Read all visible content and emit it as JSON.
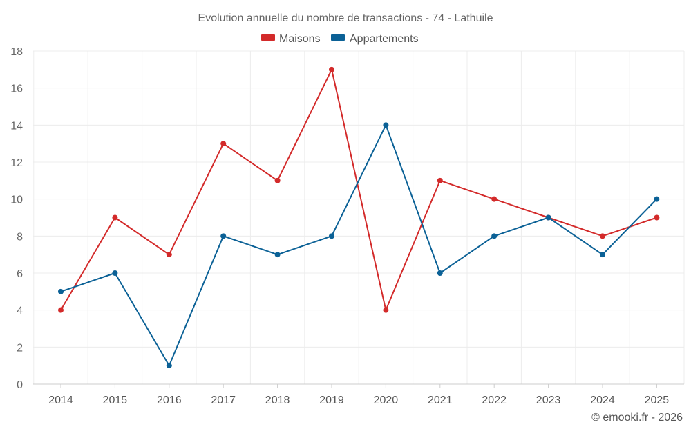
{
  "chart_data": {
    "type": "line",
    "title": "Evolution annuelle du nombre de transactions - 74 - Lathuile",
    "categories": [
      "2014",
      "2015",
      "2016",
      "2017",
      "2018",
      "2019",
      "2020",
      "2021",
      "2022",
      "2023",
      "2024",
      "2025"
    ],
    "series": [
      {
        "name": "Maisons",
        "color": "#d32a2a",
        "values": [
          4,
          9,
          7,
          13,
          11,
          17,
          4,
          11,
          10,
          9,
          8,
          9
        ]
      },
      {
        "name": "Appartements",
        "color": "#0b6196",
        "values": [
          5,
          6,
          1,
          8,
          7,
          8,
          14,
          6,
          8,
          9,
          7,
          10
        ]
      }
    ],
    "ylim": [
      0,
      18
    ],
    "yticks": [
      "0",
      "2",
      "4",
      "6",
      "8",
      "10",
      "12",
      "14",
      "16",
      "18"
    ],
    "ytick_values": [
      0,
      2,
      4,
      6,
      8,
      10,
      12,
      14,
      16,
      18
    ],
    "xlabel": "",
    "ylabel": "",
    "grid": true,
    "legend_position": "top-center"
  },
  "credit": "© emooki.fr - 2026"
}
